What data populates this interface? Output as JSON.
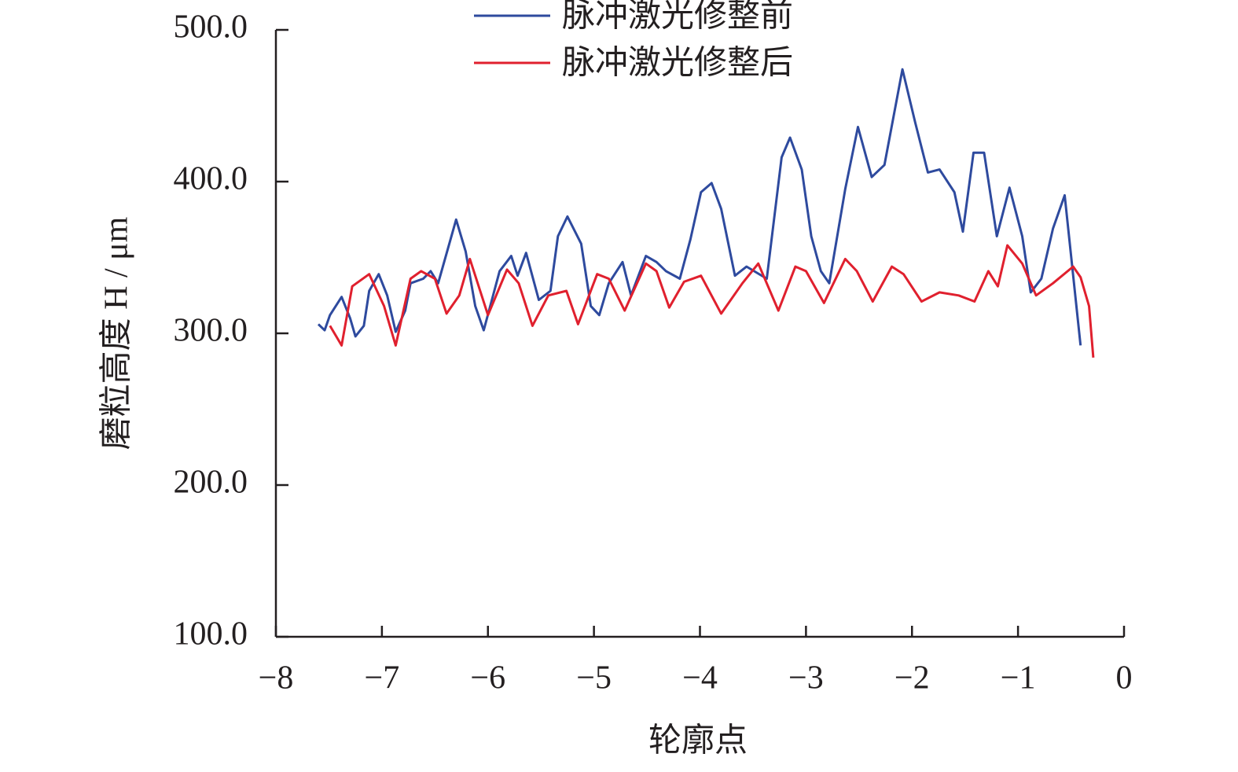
{
  "chart_data": {
    "type": "line",
    "x_label": "轮廓点",
    "y_label": "磨粒高度 H / μm",
    "xlim": [
      -8,
      0
    ],
    "ylim": [
      100,
      500
    ],
    "xticks": [
      {
        "value": -8,
        "label": "−8"
      },
      {
        "value": -7,
        "label": "−7"
      },
      {
        "value": -6,
        "label": "−6"
      },
      {
        "value": -5,
        "label": "−5"
      },
      {
        "value": -4,
        "label": "−4"
      },
      {
        "value": -3,
        "label": "−3"
      },
      {
        "value": -2,
        "label": "−2"
      },
      {
        "value": -1,
        "label": "−1"
      },
      0
    ],
    "yticks": [
      {
        "value": 100,
        "label": "100.0"
      },
      {
        "value": 200,
        "label": "200.0"
      },
      {
        "value": 300,
        "label": "300.0"
      },
      {
        "value": 400,
        "label": "400.0"
      },
      {
        "value": 500,
        "label": "500.0"
      }
    ],
    "series": [
      {
        "name": "脉冲激光修整前",
        "color": "#2e4a9e",
        "x": [
          -7.6,
          -7.54,
          -7.49,
          -7.38,
          -7.3,
          -7.25,
          -7.17,
          -7.12,
          -7.03,
          -6.95,
          -6.87,
          -6.78,
          -6.73,
          -6.61,
          -6.54,
          -6.47,
          -6.3,
          -6.21,
          -6.12,
          -6.04,
          -5.89,
          -5.78,
          -5.72,
          -5.64,
          -5.52,
          -5.41,
          -5.34,
          -5.25,
          -5.12,
          -5.03,
          -4.95,
          -4.86,
          -4.73,
          -4.65,
          -4.51,
          -4.41,
          -4.32,
          -4.19,
          -4.09,
          -3.99,
          -3.89,
          -3.8,
          -3.67,
          -3.56,
          -3.37,
          -3.23,
          -3.15,
          -3.04,
          -2.95,
          -2.86,
          -2.78,
          -2.63,
          -2.51,
          -2.38,
          -2.26,
          -2.09,
          -1.97,
          -1.85,
          -1.74,
          -1.6,
          -1.52,
          -1.42,
          -1.32,
          -1.2,
          -1.08,
          -0.96,
          -0.88,
          -0.78,
          -0.67,
          -0.56,
          -0.41
        ],
        "values": [
          306,
          302,
          312,
          324,
          310,
          298,
          305,
          328,
          339,
          325,
          301,
          315,
          333,
          336,
          341,
          333,
          375,
          354,
          318,
          302,
          341,
          351,
          338,
          353,
          322,
          328,
          364,
          377,
          359,
          318,
          312,
          333,
          347,
          325,
          351,
          347,
          341,
          336,
          362,
          393,
          399,
          382,
          338,
          344,
          336,
          416,
          429,
          408,
          364,
          341,
          333,
          395,
          436,
          403,
          411,
          474,
          439,
          406,
          408,
          393,
          367,
          419,
          419,
          364,
          396,
          364,
          327,
          336,
          369,
          391,
          292
        ]
      },
      {
        "name": "脉冲激光修整后",
        "color": "#e0202e",
        "x": [
          -7.49,
          -7.38,
          -7.28,
          -7.12,
          -6.98,
          -6.87,
          -6.73,
          -6.63,
          -6.5,
          -6.39,
          -6.27,
          -6.17,
          -6.0,
          -5.82,
          -5.71,
          -5.58,
          -5.43,
          -5.26,
          -5.15,
          -4.97,
          -4.86,
          -4.71,
          -4.51,
          -4.41,
          -4.29,
          -4.15,
          -3.99,
          -3.8,
          -3.6,
          -3.45,
          -3.26,
          -3.1,
          -3.0,
          -2.83,
          -2.63,
          -2.52,
          -2.37,
          -2.19,
          -2.08,
          -1.91,
          -1.74,
          -1.56,
          -1.41,
          -1.28,
          -1.19,
          -1.1,
          -0.96,
          -0.83,
          -0.67,
          -0.48,
          -0.41,
          -0.33,
          -0.29
        ],
        "values": [
          305,
          292,
          331,
          339,
          318,
          292,
          336,
          341,
          336,
          313,
          325,
          349,
          312,
          342,
          333,
          305,
          325,
          328,
          306,
          339,
          336,
          315,
          346,
          341,
          317,
          334,
          338,
          313,
          333,
          346,
          315,
          344,
          341,
          320,
          349,
          341,
          321,
          344,
          339,
          321,
          327,
          325,
          321,
          341,
          331,
          358,
          346,
          325,
          333,
          344,
          337,
          318,
          284
        ]
      }
    ]
  }
}
